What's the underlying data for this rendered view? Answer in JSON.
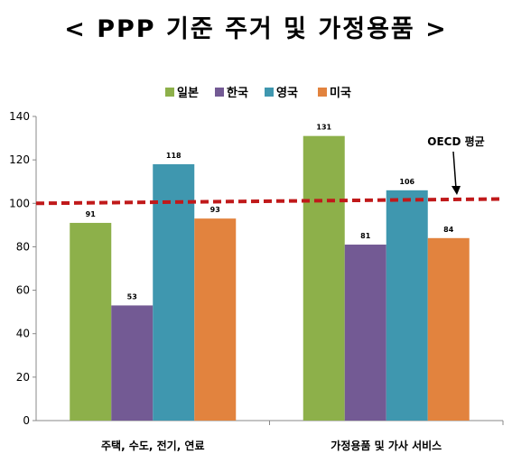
{
  "chart_data": {
    "type": "bar",
    "title": "< PPP 기준 주거 및 가정용품 >",
    "categories": [
      "주택, 수도, 전기, 연료",
      "가정용품 및 가사 서비스"
    ],
    "series": [
      {
        "name": "일본",
        "color": "#8DB04A",
        "values": [
          91,
          131
        ]
      },
      {
        "name": "한국",
        "color": "#735A94",
        "values": [
          53,
          81
        ]
      },
      {
        "name": "영국",
        "color": "#3F97AF",
        "values": [
          118,
          106
        ]
      },
      {
        "name": "미국",
        "color": "#E2833E",
        "values": [
          93,
          84
        ]
      }
    ],
    "ylim": [
      0,
      140
    ],
    "yticks": [
      0,
      20,
      40,
      60,
      80,
      100,
      120,
      140
    ],
    "grid": false,
    "legend_position": "top-center",
    "reference_line": {
      "label": "OECD 평균",
      "value_start": 100,
      "value_end": 102,
      "color": "#C0191A",
      "style": "dashed"
    }
  }
}
